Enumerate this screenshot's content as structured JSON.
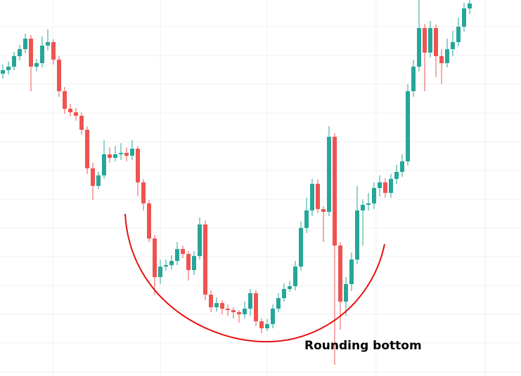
{
  "chart_data": {
    "type": "candlestick",
    "annotation": "Rounding bottom",
    "up_color": "#26a69a",
    "down_color": "#ef5350",
    "ylim": [
      64,
      600
    ],
    "candles": [
      [
        495,
        508,
        488,
        500
      ],
      [
        500,
        512,
        494,
        505
      ],
      [
        505,
        526,
        500,
        520
      ],
      [
        520,
        536,
        514,
        530
      ],
      [
        530,
        552,
        524,
        545
      ],
      [
        545,
        550,
        470,
        505
      ],
      [
        505,
        516,
        498,
        510
      ],
      [
        510,
        548,
        504,
        535
      ],
      [
        535,
        558,
        528,
        540
      ],
      [
        540,
        544,
        508,
        515
      ],
      [
        515,
        520,
        462,
        470
      ],
      [
        470,
        476,
        438,
        445
      ],
      [
        445,
        452,
        434,
        440
      ],
      [
        440,
        446,
        428,
        435
      ],
      [
        435,
        440,
        408,
        415
      ],
      [
        415,
        420,
        352,
        360
      ],
      [
        360,
        368,
        315,
        335
      ],
      [
        335,
        355,
        330,
        350
      ],
      [
        350,
        400,
        345,
        380
      ],
      [
        380,
        390,
        368,
        375
      ],
      [
        375,
        392,
        370,
        380
      ],
      [
        380,
        396,
        372,
        382
      ],
      [
        382,
        390,
        370,
        378
      ],
      [
        378,
        400,
        372,
        388
      ],
      [
        388,
        392,
        320,
        340
      ],
      [
        340,
        345,
        300,
        310
      ],
      [
        310,
        315,
        255,
        260
      ],
      [
        260,
        265,
        180,
        205
      ],
      [
        205,
        230,
        195,
        220
      ],
      [
        220,
        230,
        214,
        222
      ],
      [
        222,
        236,
        216,
        228
      ],
      [
        228,
        255,
        222,
        245
      ],
      [
        245,
        250,
        232,
        238
      ],
      [
        238,
        242,
        200,
        215
      ],
      [
        215,
        242,
        208,
        235
      ],
      [
        235,
        290,
        230,
        280
      ],
      [
        280,
        286,
        172,
        180
      ],
      [
        180,
        186,
        155,
        162
      ],
      [
        162,
        176,
        156,
        168
      ],
      [
        168,
        172,
        152,
        160
      ],
      [
        160,
        166,
        150,
        158
      ],
      [
        158,
        162,
        146,
        155
      ],
      [
        155,
        158,
        140,
        152
      ],
      [
        152,
        170,
        146,
        160
      ],
      [
        160,
        188,
        150,
        182
      ],
      [
        182,
        186,
        135,
        142
      ],
      [
        142,
        146,
        125,
        132
      ],
      [
        132,
        145,
        128,
        138
      ],
      [
        138,
        166,
        132,
        160
      ],
      [
        160,
        182,
        155,
        175
      ],
      [
        175,
        196,
        170,
        188
      ],
      [
        188,
        200,
        184,
        192
      ],
      [
        192,
        228,
        186,
        220
      ],
      [
        220,
        284,
        214,
        275
      ],
      [
        275,
        318,
        268,
        300
      ],
      [
        300,
        345,
        292,
        338
      ],
      [
        338,
        344,
        296,
        302
      ],
      [
        302,
        306,
        255,
        298
      ],
      [
        298,
        420,
        292,
        405
      ],
      [
        405,
        410,
        80,
        250
      ],
      [
        250,
        255,
        130,
        170
      ],
      [
        170,
        205,
        150,
        195
      ],
      [
        195,
        240,
        185,
        230
      ],
      [
        230,
        335,
        224,
        300
      ],
      [
        300,
        316,
        250,
        308
      ],
      [
        308,
        325,
        300,
        310
      ],
      [
        310,
        340,
        302,
        332
      ],
      [
        332,
        350,
        320,
        340
      ],
      [
        340,
        346,
        318,
        325
      ],
      [
        325,
        352,
        318,
        345
      ],
      [
        345,
        365,
        338,
        355
      ],
      [
        355,
        380,
        348,
        370
      ],
      [
        370,
        480,
        364,
        470
      ],
      [
        470,
        515,
        462,
        505
      ],
      [
        505,
        600,
        498,
        560
      ],
      [
        560,
        566,
        470,
        525
      ],
      [
        525,
        570,
        518,
        560
      ],
      [
        560,
        565,
        490,
        520
      ],
      [
        520,
        530,
        480,
        510
      ],
      [
        510,
        545,
        504,
        530
      ],
      [
        530,
        556,
        520,
        540
      ],
      [
        540,
        575,
        534,
        562
      ],
      [
        562,
        596,
        555,
        588
      ],
      [
        588,
        600,
        580,
        595
      ]
    ]
  }
}
